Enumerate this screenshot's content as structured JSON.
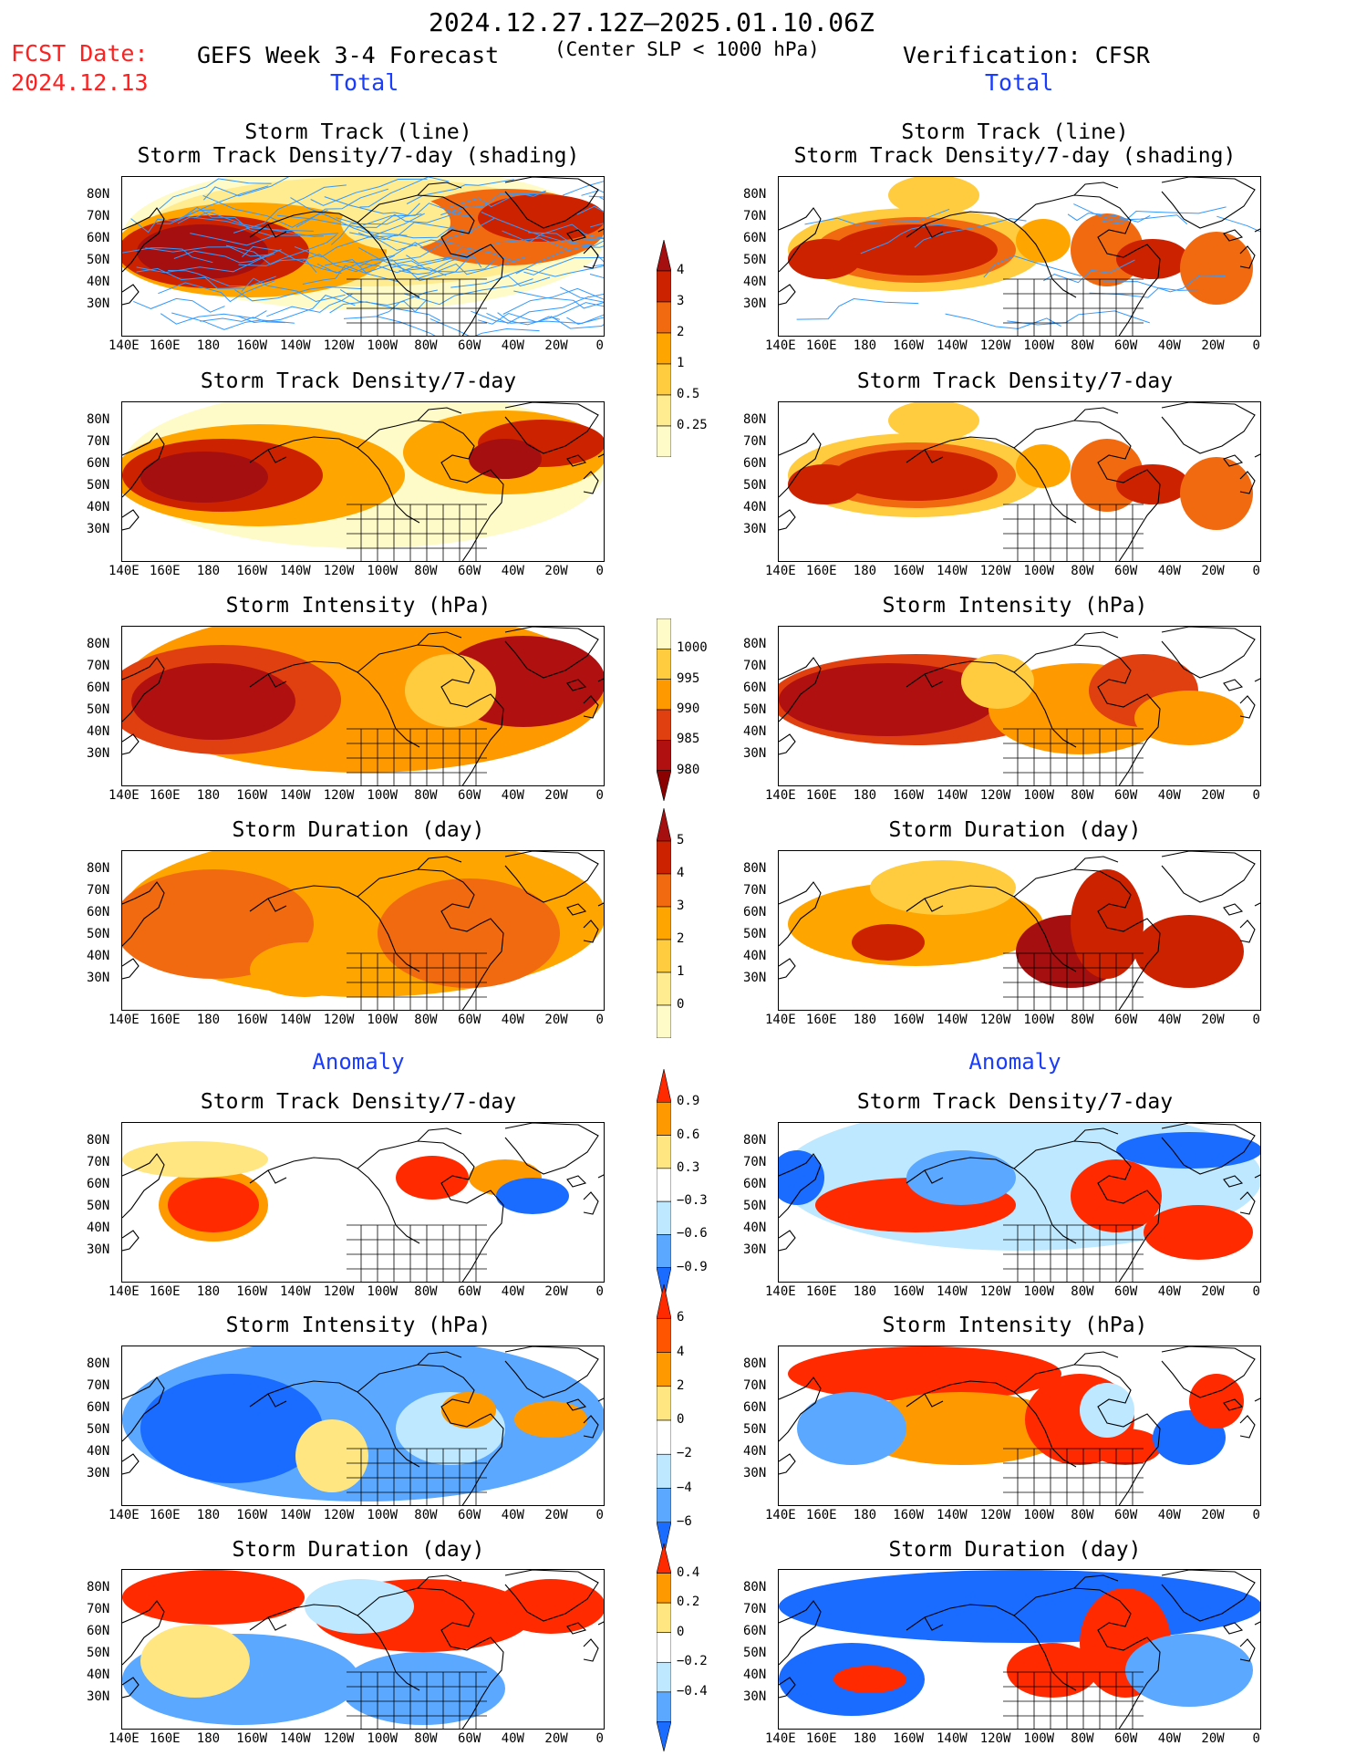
{
  "header": {
    "date_range": "2024.12.27.12Z–2025.01.10.06Z",
    "fcst_label": "FCST Date:",
    "fcst_date": "2024.12.13",
    "forecast_title": "GEFS Week 3-4 Forecast",
    "criterion": "(Center SLP < 1000 hPa)",
    "verification": "Verification: CFSR",
    "total_label": "Total",
    "anomaly_label": "Anomaly"
  },
  "axes": {
    "lat_labels": [
      "80N",
      "70N",
      "60N",
      "50N",
      "40N",
      "30N"
    ],
    "lon_labels": [
      "140E",
      "160E",
      "180",
      "160W",
      "140W",
      "120W",
      "100W",
      "80W",
      "60W",
      "40W",
      "20W",
      "0"
    ]
  },
  "panels": {
    "p1_title": [
      "Storm Track (line)",
      "Storm Track Density/7-day (shading)"
    ],
    "p2_title": "Storm Track Density/7-day",
    "p3_title": "Storm Intensity (hPa)",
    "p4_title": "Storm Duration (day)",
    "p5_title": "Storm Track Density/7-day",
    "p6_title": "Storm Intensity (hPa)",
    "p7_title": "Storm Duration (day)"
  },
  "colorbars": {
    "density": {
      "ticks": [
        "4",
        "3",
        "2",
        "1",
        "0.5",
        "0.25"
      ],
      "colors": [
        "#a50f0f",
        "#cc2200",
        "#f26a10",
        "#ffa500",
        "#ffcc40",
        "#ffeb90",
        "#fffbc8"
      ]
    },
    "intensity": {
      "ticks": [
        "1000",
        "995",
        "990",
        "985",
        "980"
      ],
      "colors": [
        "#fffbc8",
        "#ffcc40",
        "#ff9900",
        "#e04010",
        "#b01010",
        "#8b0000"
      ]
    },
    "duration": {
      "ticks": [
        "5",
        "4",
        "3",
        "2",
        "1",
        "0"
      ],
      "colors": [
        "#a50f0f",
        "#cc2200",
        "#f26a10",
        "#ffa500",
        "#ffcc40",
        "#ffeb90",
        "#fffbc8"
      ]
    },
    "anom_density": {
      "ticks": [
        "0.9",
        "0.6",
        "0.3",
        "−0.3",
        "−0.6",
        "−0.9"
      ]
    },
    "anom_intensity": {
      "ticks": [
        "6",
        "4",
        "2",
        "0",
        "−2",
        "−4",
        "−6"
      ]
    },
    "anom_duration": {
      "ticks": [
        "0.4",
        "0.2",
        "0",
        "−0.2",
        "−0.4"
      ]
    },
    "anom_colors": [
      "#ff2a00",
      "#ff9900",
      "#ffe680",
      "#ffffff",
      "#bde8ff",
      "#5aa8ff",
      "#1a6bff"
    ]
  },
  "legend_colors": {
    "track_line": "#3399ff",
    "land_outline": "#000000"
  }
}
